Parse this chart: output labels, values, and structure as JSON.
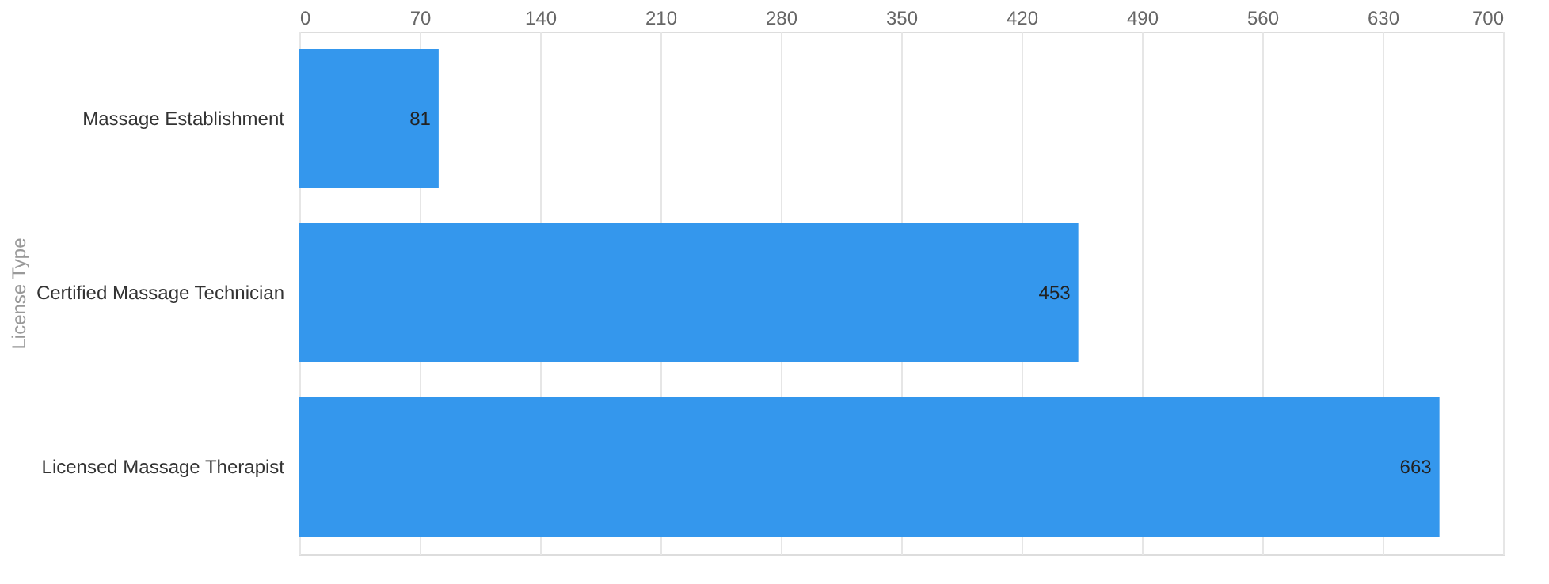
{
  "chart_data": {
    "type": "bar",
    "orientation": "horizontal",
    "ylabel": "License Type",
    "categories": [
      "Massage Establishment",
      "Certified Massage Technician",
      "Licensed Massage Therapist"
    ],
    "values": [
      81,
      453,
      663
    ],
    "color": "#3497ed",
    "xlim": [
      0,
      700
    ],
    "xticks": [
      0,
      70,
      140,
      210,
      280,
      350,
      420,
      490,
      560,
      630,
      700
    ],
    "grid": "x",
    "data_labels": true
  }
}
